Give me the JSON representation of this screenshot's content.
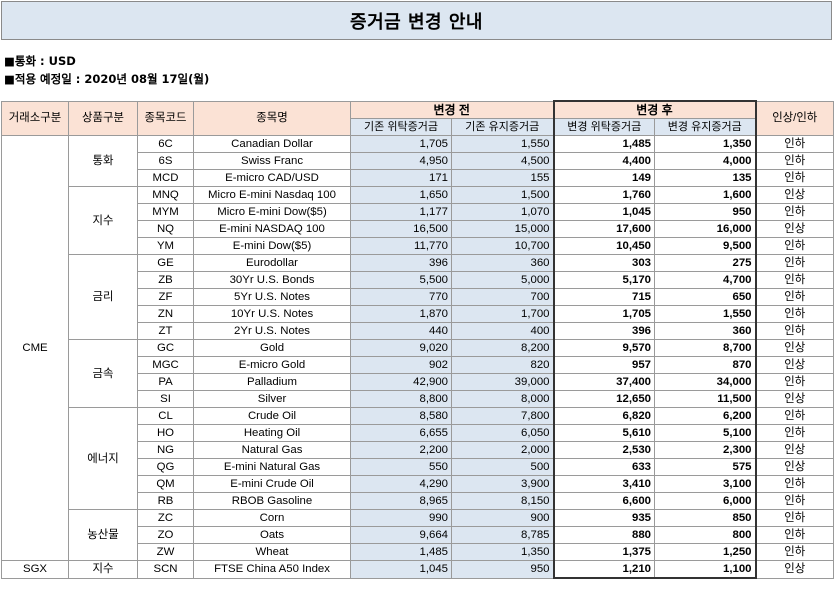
{
  "title": "증거금 변경 안내",
  "currency_line": "■통화 : USD",
  "date_line": "■적용 예정일 : 2020년 08월 17일(월)",
  "headers": {
    "exchange": "거래소구분",
    "category": "상품구분",
    "code": "종목코드",
    "name": "종목명",
    "before": "변경 전",
    "after": "변경 후",
    "direction": "인상/인하",
    "before_initial": "기존 위탁증거금",
    "before_maint": "기존 유지증거금",
    "after_initial": "변경 위탁증거금",
    "after_maint": "변경 유지증거금"
  },
  "groups": [
    {
      "exchange": "CME",
      "category": "통화",
      "rows": [
        {
          "code": "6C",
          "name": "Canadian Dollar",
          "bi": "1,705",
          "bm": "1,550",
          "ai": "1,485",
          "am": "1,350",
          "dir": "인하"
        },
        {
          "code": "6S",
          "name": "Swiss Franc",
          "bi": "4,950",
          "bm": "4,500",
          "ai": "4,400",
          "am": "4,000",
          "dir": "인하"
        },
        {
          "code": "MCD",
          "name": "E-micro CAD/USD",
          "bi": "171",
          "bm": "155",
          "ai": "149",
          "am": "135",
          "dir": "인하"
        }
      ]
    },
    {
      "exchange": "CME",
      "category": "지수",
      "rows": [
        {
          "code": "MNQ",
          "name": "Micro E-mini Nasdaq 100",
          "bi": "1,650",
          "bm": "1,500",
          "ai": "1,760",
          "am": "1,600",
          "dir": "인상"
        },
        {
          "code": "MYM",
          "name": "Micro E-mini Dow($5)",
          "bi": "1,177",
          "bm": "1,070",
          "ai": "1,045",
          "am": "950",
          "dir": "인하"
        },
        {
          "code": "NQ",
          "name": "E-mini NASDAQ 100",
          "bi": "16,500",
          "bm": "15,000",
          "ai": "17,600",
          "am": "16,000",
          "dir": "인상"
        },
        {
          "code": "YM",
          "name": "E-mini Dow($5)",
          "bi": "11,770",
          "bm": "10,700",
          "ai": "10,450",
          "am": "9,500",
          "dir": "인하"
        }
      ]
    },
    {
      "exchange": "CME",
      "category": "금리",
      "rows": [
        {
          "code": "GE",
          "name": "Eurodollar",
          "bi": "396",
          "bm": "360",
          "ai": "303",
          "am": "275",
          "dir": "인하"
        },
        {
          "code": "ZB",
          "name": "30Yr U.S. Bonds",
          "bi": "5,500",
          "bm": "5,000",
          "ai": "5,170",
          "am": "4,700",
          "dir": "인하"
        },
        {
          "code": "ZF",
          "name": "5Yr U.S. Notes",
          "bi": "770",
          "bm": "700",
          "ai": "715",
          "am": "650",
          "dir": "인하"
        },
        {
          "code": "ZN",
          "name": "10Yr U.S. Notes",
          "bi": "1,870",
          "bm": "1,700",
          "ai": "1,705",
          "am": "1,550",
          "dir": "인하"
        },
        {
          "code": "ZT",
          "name": "2Yr U.S. Notes",
          "bi": "440",
          "bm": "400",
          "ai": "396",
          "am": "360",
          "dir": "인하"
        }
      ]
    },
    {
      "exchange": "CME",
      "category": "금속",
      "rows": [
        {
          "code": "GC",
          "name": "Gold",
          "bi": "9,020",
          "bm": "8,200",
          "ai": "9,570",
          "am": "8,700",
          "dir": "인상"
        },
        {
          "code": "MGC",
          "name": "E-micro Gold",
          "bi": "902",
          "bm": "820",
          "ai": "957",
          "am": "870",
          "dir": "인상"
        },
        {
          "code": "PA",
          "name": "Palladium",
          "bi": "42,900",
          "bm": "39,000",
          "ai": "37,400",
          "am": "34,000",
          "dir": "인하"
        },
        {
          "code": "SI",
          "name": "Silver",
          "bi": "8,800",
          "bm": "8,000",
          "ai": "12,650",
          "am": "11,500",
          "dir": "인상"
        }
      ]
    },
    {
      "exchange": "CME",
      "category": "에너지",
      "rows": [
        {
          "code": "CL",
          "name": "Crude Oil",
          "bi": "8,580",
          "bm": "7,800",
          "ai": "6,820",
          "am": "6,200",
          "dir": "인하"
        },
        {
          "code": "HO",
          "name": "Heating Oil",
          "bi": "6,655",
          "bm": "6,050",
          "ai": "5,610",
          "am": "5,100",
          "dir": "인하"
        },
        {
          "code": "NG",
          "name": "Natural Gas",
          "bi": "2,200",
          "bm": "2,000",
          "ai": "2,530",
          "am": "2,300",
          "dir": "인상"
        },
        {
          "code": "QG",
          "name": "E-mini Natural Gas",
          "bi": "550",
          "bm": "500",
          "ai": "633",
          "am": "575",
          "dir": "인상"
        },
        {
          "code": "QM",
          "name": "E-mini Crude Oil",
          "bi": "4,290",
          "bm": "3,900",
          "ai": "3,410",
          "am": "3,100",
          "dir": "인하"
        },
        {
          "code": "RB",
          "name": "RBOB Gasoline",
          "bi": "8,965",
          "bm": "8,150",
          "ai": "6,600",
          "am": "6,000",
          "dir": "인하"
        }
      ]
    },
    {
      "exchange": "CME",
      "category": "농산물",
      "rows": [
        {
          "code": "ZC",
          "name": "Corn",
          "bi": "990",
          "bm": "900",
          "ai": "935",
          "am": "850",
          "dir": "인하"
        },
        {
          "code": "ZO",
          "name": "Oats",
          "bi": "9,664",
          "bm": "8,785",
          "ai": "880",
          "am": "800",
          "dir": "인하"
        },
        {
          "code": "ZW",
          "name": "Wheat",
          "bi": "1,485",
          "bm": "1,350",
          "ai": "1,375",
          "am": "1,250",
          "dir": "인하"
        }
      ]
    },
    {
      "exchange": "SGX",
      "category": "지수",
      "rows": [
        {
          "code": "SCN",
          "name": "FTSE China A50 Index",
          "bi": "1,045",
          "bm": "950",
          "ai": "1,210",
          "am": "1,100",
          "dir": "인상"
        }
      ]
    }
  ]
}
